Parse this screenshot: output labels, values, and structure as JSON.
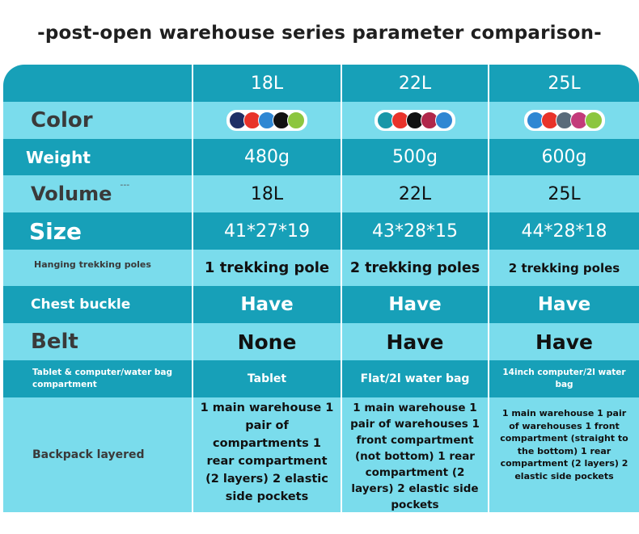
{
  "title": "-post-open warehouse series parameter comparison-",
  "columns": [
    "18L",
    "22L",
    "25L"
  ],
  "rows": {
    "color": {
      "label": "Color",
      "swatches": [
        [
          "#1f2f66",
          "#e8332a",
          "#2f87d3",
          "#111111",
          "#8cc63f"
        ],
        [
          "#1a97a8",
          "#e8332a",
          "#111111",
          "#b0274a",
          "#2f87d3"
        ],
        [
          "#2f87d3",
          "#e8332a",
          "#5a6b7a",
          "#c33a7a",
          "#8cc63f"
        ]
      ]
    },
    "weight": {
      "label": "Weight",
      "values": [
        "480g",
        "500g",
        "600g"
      ]
    },
    "volume": {
      "label": "Volume",
      "mark": "---",
      "values": [
        "18L",
        "22L",
        "25L"
      ]
    },
    "size": {
      "label": "Size",
      "values": [
        "41*27*19",
        "43*28*15",
        "44*28*18"
      ]
    },
    "poles": {
      "label": "Hanging trekking poles",
      "values": [
        "1 trekking pole",
        "2 trekking poles",
        "2 trekking poles"
      ]
    },
    "chest": {
      "label": "Chest buckle",
      "values": [
        "Have",
        "Have",
        "Have"
      ]
    },
    "belt": {
      "label": "Belt",
      "values": [
        "None",
        "Have",
        "Have"
      ]
    },
    "compartment": {
      "label": "Tablet & computer/water bag compartment",
      "values": [
        "Tablet",
        "Flat/2l water bag",
        "14inch computer/2l water bag"
      ]
    },
    "layered": {
      "label": "Backpack layered",
      "values": [
        "1 main warehouse 1 pair of compartments 1 rear compartment (2 layers) 2 elastic side pockets",
        "1 main warehouse 1 pair of warehouses 1 front compartment (not bottom) 1 rear compartment (2 layers) 2 elastic side pockets",
        "1 main warehouse 1 pair of warehouses 1 front compartment (straight to the bottom) 1 rear compartment (2 layers) 2 elastic side pockets"
      ]
    }
  }
}
